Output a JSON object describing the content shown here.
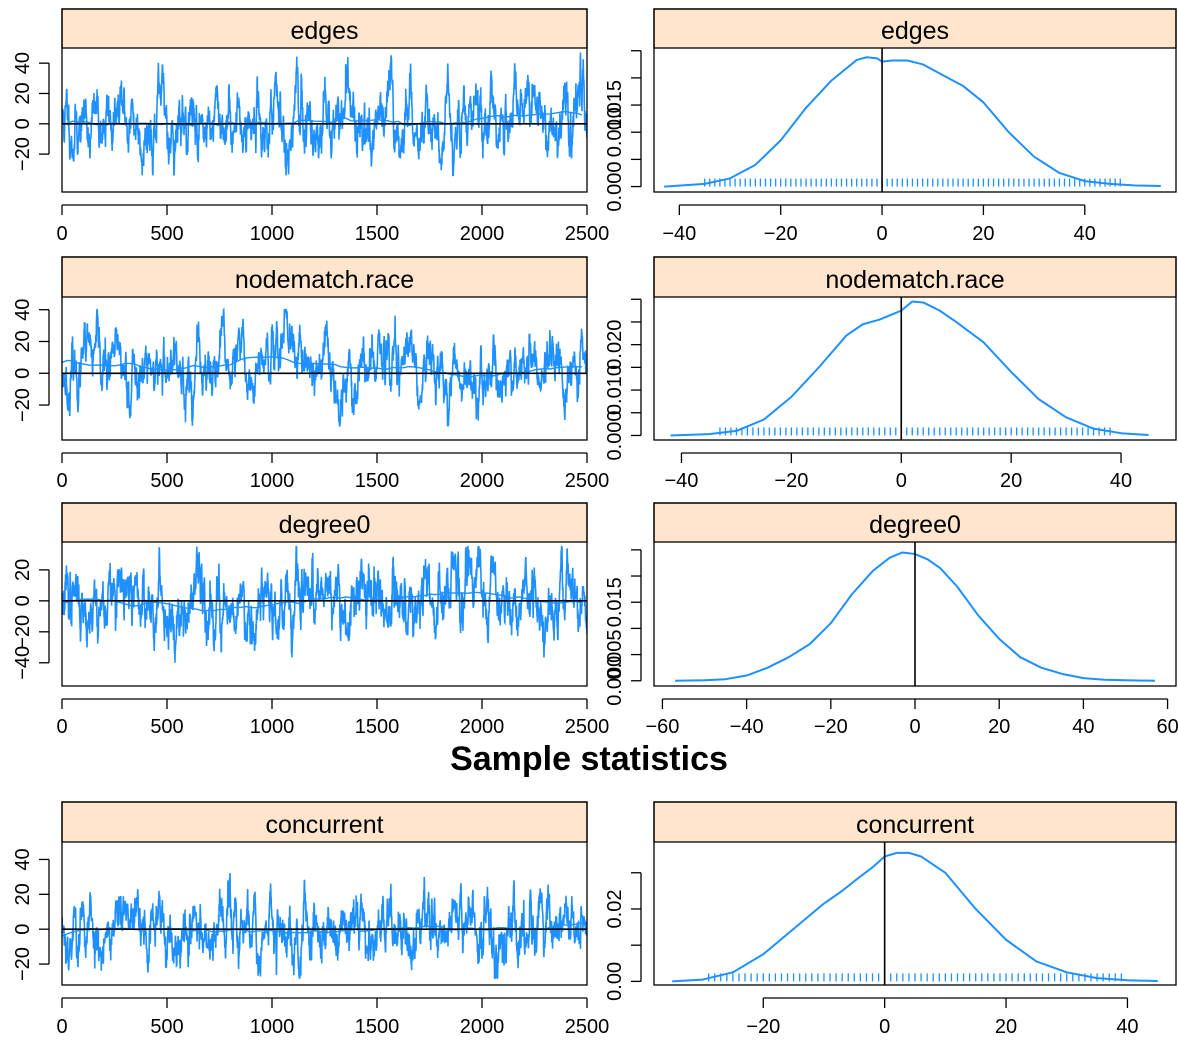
{
  "title": "Sample statistics",
  "colors": {
    "series": "#1E90FF",
    "strip": "#FFE5CC",
    "axis": "#000000",
    "background": "#FFFFFF"
  },
  "chart_data": [
    {
      "id": "edges-trace",
      "type": "line",
      "title": "edges",
      "xlim": [
        0,
        2500
      ],
      "ylim": [
        -45,
        50
      ],
      "xticks": [
        0,
        500,
        1000,
        1500,
        2000,
        2500
      ],
      "yticks": [
        -20,
        0,
        20,
        40
      ],
      "yticklabels": [
        "−20",
        "0",
        "20",
        "40"
      ],
      "hline": 0,
      "trace": {
        "n": 2500,
        "seed": 11,
        "mean": 2,
        "sd": 14,
        "ar": 0.92,
        "min": -34,
        "max": 47
      }
    },
    {
      "id": "edges-density",
      "type": "line",
      "title": "edges",
      "xlim": [
        -45,
        58
      ],
      "ylim": [
        -0.001,
        0.0255
      ],
      "xticks": [
        -40,
        -20,
        0,
        20,
        40
      ],
      "xticklabels": [
        "−40",
        "−20",
        "0",
        "20",
        "40"
      ],
      "yticks": [
        0.0,
        0.005,
        0.01,
        0.015,
        0.02,
        0.025
      ],
      "yticklabels": [
        "0.000",
        "",
        "0.010",
        "0.015",
        "",
        ""
      ],
      "vline": 0,
      "x": [
        -43,
        -35,
        -30,
        -25,
        -20,
        -15,
        -10,
        -5,
        -3,
        -1,
        0,
        2,
        5,
        8,
        12,
        16,
        20,
        25,
        30,
        35,
        40,
        45,
        50,
        55
      ],
      "y": [
        0.0,
        0.0005,
        0.0015,
        0.004,
        0.0085,
        0.0145,
        0.0195,
        0.0233,
        0.0238,
        0.0236,
        0.023,
        0.0232,
        0.0232,
        0.0225,
        0.0205,
        0.0185,
        0.0155,
        0.01,
        0.0055,
        0.0025,
        0.001,
        0.0005,
        0.0002,
        0.0001
      ],
      "rug": {
        "from": -35,
        "to": 47,
        "step": 1
      }
    },
    {
      "id": "nodematch-race-trace",
      "type": "line",
      "title": "nodematch.race",
      "xlim": [
        0,
        2500
      ],
      "ylim": [
        -42,
        48
      ],
      "xticks": [
        0,
        500,
        1000,
        1500,
        2000,
        2500
      ],
      "yticks": [
        -20,
        0,
        20,
        40
      ],
      "yticklabels": [
        "−20",
        "0",
        "20",
        "40"
      ],
      "hline": 0,
      "trace": {
        "n": 2500,
        "seed": 23,
        "mean": 1,
        "sd": 13,
        "ar": 0.93,
        "min": -33,
        "max": 40
      }
    },
    {
      "id": "nodematch-race-density",
      "type": "line",
      "title": "nodematch.race",
      "xlim": [
        -45,
        50
      ],
      "ylim": [
        -0.001,
        0.0305
      ],
      "xticks": [
        -40,
        -20,
        0,
        20,
        40
      ],
      "xticklabels": [
        "−40",
        "−20",
        "0",
        "20",
        "40"
      ],
      "yticks": [
        0.0,
        0.005,
        0.01,
        0.015,
        0.02,
        0.025,
        0.03
      ],
      "yticklabels": [
        "0.000",
        "",
        "0.010",
        "",
        "0.020",
        "",
        ""
      ],
      "vline": 0,
      "x": [
        -42,
        -35,
        -30,
        -25,
        -20,
        -15,
        -10,
        -7,
        -4,
        -2,
        0,
        2,
        4,
        7,
        10,
        15,
        20,
        25,
        30,
        35,
        40,
        45
      ],
      "y": [
        0.0,
        0.0003,
        0.001,
        0.0035,
        0.0085,
        0.015,
        0.022,
        0.0245,
        0.0255,
        0.0265,
        0.0275,
        0.0295,
        0.0293,
        0.0275,
        0.025,
        0.0205,
        0.014,
        0.008,
        0.004,
        0.0015,
        0.0005,
        0.0001
      ],
      "rug": {
        "from": -33,
        "to": 38,
        "step": 1
      }
    },
    {
      "id": "degree0-trace",
      "type": "line",
      "title": "degree0",
      "xlim": [
        0,
        2500
      ],
      "ylim": [
        -55,
        38
      ],
      "xticks": [
        0,
        500,
        1000,
        1500,
        2000,
        2500
      ],
      "yticks": [
        -40,
        -20,
        0,
        20
      ],
      "yticklabels": [
        "−40",
        "−20",
        "0",
        "20"
      ],
      "hline": 0,
      "trace": {
        "n": 2500,
        "seed": 37,
        "mean": 0,
        "sd": 13,
        "ar": 0.9,
        "min": -46,
        "max": 35
      }
    },
    {
      "id": "degree0-density",
      "type": "line",
      "title": "degree0",
      "xlim": [
        -62,
        62
      ],
      "ylim": [
        -0.001,
        0.0265
      ],
      "xticks": [
        -60,
        -40,
        -20,
        0,
        20,
        40,
        60
      ],
      "xticklabels": [
        "−60",
        "−40",
        "−20",
        "0",
        "20",
        "40",
        "60"
      ],
      "yticks": [
        0.0,
        0.005,
        0.01,
        0.015,
        0.02,
        0.025
      ],
      "yticklabels": [
        "0.000",
        "0.005",
        "",
        "0.015",
        "",
        ""
      ],
      "vline": 0,
      "x": [
        -57,
        -50,
        -45,
        -40,
        -35,
        -30,
        -25,
        -20,
        -15,
        -10,
        -6,
        -3,
        0,
        3,
        6,
        10,
        15,
        20,
        25,
        30,
        35,
        40,
        45,
        50,
        57
      ],
      "y": [
        0.0,
        0.0001,
        0.0003,
        0.001,
        0.0025,
        0.0045,
        0.007,
        0.011,
        0.0165,
        0.021,
        0.0235,
        0.0245,
        0.0242,
        0.0232,
        0.0215,
        0.018,
        0.0125,
        0.008,
        0.0045,
        0.0025,
        0.0013,
        0.0005,
        0.0002,
        0.0001,
        0.0
      ]
    },
    {
      "id": "concurrent-trace",
      "type": "line",
      "title": "concurrent",
      "xlim": [
        0,
        2500
      ],
      "ylim": [
        -32,
        50
      ],
      "xticks": [
        0,
        500,
        1000,
        1500,
        2000,
        2500
      ],
      "yticks": [
        -20,
        0,
        20,
        40
      ],
      "yticklabels": [
        "−20",
        "0",
        "20",
        "40"
      ],
      "hline": 0,
      "trace": {
        "n": 2500,
        "seed": 53,
        "mean": 0,
        "sd": 11,
        "ar": 0.9,
        "min": -28,
        "max": 39
      }
    },
    {
      "id": "concurrent-density",
      "type": "line",
      "title": "concurrent",
      "xlim": [
        -38,
        48
      ],
      "ylim": [
        -0.001,
        0.0385
      ],
      "xticks": [
        -20,
        0,
        20,
        40
      ],
      "xticklabels": [
        "−20",
        "0",
        "20",
        "40"
      ],
      "yticks": [
        0.0,
        0.01,
        0.02,
        0.03
      ],
      "yticklabels": [
        "0.00",
        "",
        "0.02",
        ""
      ],
      "vline": 0,
      "x": [
        -35,
        -30,
        -25,
        -20,
        -15,
        -10,
        -7,
        -4,
        -2,
        0,
        2,
        4,
        6,
        10,
        15,
        20,
        25,
        30,
        35,
        40,
        45
      ],
      "y": [
        0.0,
        0.0005,
        0.0025,
        0.0075,
        0.0145,
        0.0215,
        0.025,
        0.029,
        0.0315,
        0.0345,
        0.0355,
        0.0355,
        0.0345,
        0.03,
        0.02,
        0.0115,
        0.0055,
        0.0025,
        0.0009,
        0.0003,
        0.0001
      ],
      "rug": {
        "from": -29,
        "to": 39,
        "step": 1
      }
    }
  ]
}
